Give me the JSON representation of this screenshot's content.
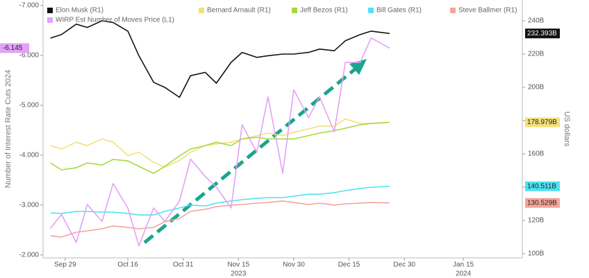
{
  "chart_data": {
    "type": "line",
    "ylabel": "Number of Interest Rate Cuts 2024",
    "y2label": "US dollars",
    "xlim": [
      "2023-09-23",
      "2024-01-31"
    ],
    "xticks": [
      {
        "value": "2023-09-29",
        "label": "Sep 29"
      },
      {
        "value": "2023-10-16",
        "label": "Oct 16"
      },
      {
        "value": "2023-10-31",
        "label": "Oct 31"
      },
      {
        "value": "2023-11-15",
        "label": "Nov 15"
      },
      {
        "value": "2023-11-30",
        "label": "Nov 30"
      },
      {
        "value": "2023-12-15",
        "label": "Dec 15"
      },
      {
        "value": "2023-12-30",
        "label": "Dec 30"
      },
      {
        "value": "2024-01-15",
        "label": "Jan 15"
      }
    ],
    "xticks_years": [
      {
        "value": "2023-11-15",
        "label": "2023"
      },
      {
        "value": "2024-01-15",
        "label": "2024"
      }
    ],
    "ylim": [
      -1.94,
      -7.11
    ],
    "yticks": [
      {
        "value": -7,
        "label": "-7.000"
      },
      {
        "value": -6,
        "label": "-6.000"
      },
      {
        "value": -5,
        "label": "-5.000"
      },
      {
        "value": -4,
        "label": "-4.000"
      },
      {
        "value": -3,
        "label": "-3.000"
      },
      {
        "value": -2,
        "label": "-2.000"
      }
    ],
    "y2lim": [
      97.5,
      252.5
    ],
    "y2ticks": [
      {
        "value": 240,
        "label": "240B"
      },
      {
        "value": 220,
        "label": "220B"
      },
      {
        "value": 200,
        "label": "200B"
      },
      {
        "value": 180,
        "label": "180B"
      },
      {
        "value": 160,
        "label": "160B"
      },
      {
        "value": 140,
        "label": "140B"
      },
      {
        "value": 120,
        "label": "120B"
      },
      {
        "value": 100,
        "label": "100B"
      }
    ],
    "x": [
      "2023-09-25",
      "2023-09-28",
      "2023-10-02",
      "2023-10-05",
      "2023-10-09",
      "2023-10-12",
      "2023-10-16",
      "2023-10-19",
      "2023-10-23",
      "2023-10-26",
      "2023-10-30",
      "2023-11-02",
      "2023-11-06",
      "2023-11-09",
      "2023-11-13",
      "2023-11-16",
      "2023-11-20",
      "2023-11-23",
      "2023-11-27",
      "2023-11-30",
      "2023-12-04",
      "2023-12-07",
      "2023-12-11",
      "2023-12-14",
      "2023-12-18",
      "2023-12-21",
      "2023-12-26"
    ],
    "series": [
      {
        "name": "Elon Musk (R1)",
        "color": "#111111",
        "axis": "y2",
        "last_label": "232.393B",
        "values": [
          229.6,
          231.7,
          238,
          236,
          240,
          239,
          233.8,
          219,
          203,
          200,
          194,
          207,
          209,
          202.5,
          215,
          221,
          218,
          219,
          220,
          220,
          221,
          223,
          222,
          228,
          231.7,
          233.8,
          232.393
        ]
      },
      {
        "name": "Bernard Arnault (R1)",
        "color": "#f3e07a",
        "axis": "y2",
        "last_label": "178.979B",
        "values": [
          165,
          163,
          167,
          165,
          169,
          167,
          159,
          161,
          155,
          152,
          156,
          161,
          165,
          166,
          167,
          169,
          171,
          172.5,
          171,
          173,
          175,
          176.7,
          176.7,
          181,
          178.3,
          178.3,
          178.979
        ]
      },
      {
        "name": "Jeff Bezos (R1)",
        "color": "#a8d83c",
        "axis": "y2",
        "values": [
          154.6,
          150.4,
          151.7,
          154.6,
          153.3,
          156.7,
          155.8,
          152.5,
          148.3,
          152.5,
          158.8,
          162.9,
          165,
          167,
          165,
          169,
          170,
          169,
          169,
          169,
          171,
          172.5,
          174,
          175.4,
          177.5,
          178.3,
          178.9
        ]
      },
      {
        "name": "Bill Gates (R1)",
        "color": "#4fe2f0",
        "axis": "y2",
        "last_label": "140.511B",
        "values": [
          124.6,
          124.2,
          125.4,
          125.4,
          125,
          125,
          124.2,
          123.3,
          123.3,
          125.4,
          127.5,
          129.2,
          128.75,
          130.4,
          131.7,
          132.5,
          133.3,
          133.75,
          133.75,
          134.6,
          135.8,
          135.8,
          136.7,
          137.9,
          139.2,
          140,
          140.511
        ]
      },
      {
        "name": "Steve Ballmer (R1)",
        "color": "#f4a49a",
        "axis": "y2",
        "last_label": "130.529B",
        "values": [
          110.8,
          110,
          112.9,
          113.75,
          115,
          116.7,
          115.8,
          115,
          115.8,
          119.2,
          121.25,
          125.4,
          126.7,
          128.3,
          129.2,
          129.6,
          130.4,
          130.8,
          131.7,
          130.8,
          129.6,
          130.4,
          129.2,
          130,
          130.4,
          130.8,
          130.529
        ]
      },
      {
        "name": "WIRP Est Number of Moves Price (L1)",
        "color": "#e2a2f6",
        "axis": "y",
        "last_label": "-6.145",
        "values": [
          -2.53,
          -2.81,
          -2.25,
          -3.01,
          -2.67,
          -3.43,
          -2.94,
          -2.18,
          -2.94,
          -2.67,
          -3.08,
          -3.92,
          -3.57,
          -3.36,
          -2.94,
          -4.61,
          -4.06,
          -5.17,
          -3.64,
          -5.31,
          -4.75,
          -5.17,
          -4.47,
          -5.86,
          -5.86,
          -6.35,
          -6.145
        ]
      }
    ]
  }
}
